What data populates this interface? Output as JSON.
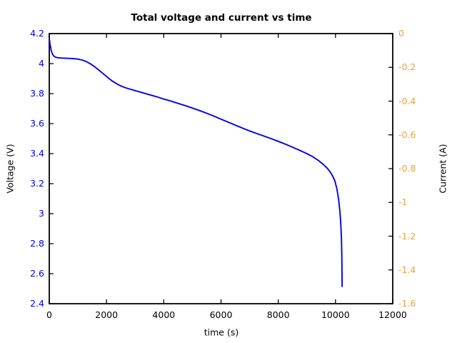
{
  "chart_data": {
    "type": "line",
    "title": "Total voltage and current vs time",
    "xlabel": "time (s)",
    "ylabel_left": "Voltage (V)",
    "ylabel_right": "Current (A)",
    "xlim": [
      0,
      12000
    ],
    "ylim_left": [
      2.4,
      4.2
    ],
    "ylim_right": [
      -1.6,
      0
    ],
    "grid": false,
    "legend": "none",
    "xticks": {
      "values": [
        0,
        2000,
        4000,
        6000,
        8000,
        10000,
        12000
      ],
      "labels": [
        "0",
        "2000",
        "4000",
        "6000",
        "8000",
        "10000",
        "12000"
      ]
    },
    "yticks_left": {
      "values": [
        4.2,
        4.0,
        3.8,
        3.6,
        3.4,
        3.2,
        3.0,
        2.8,
        2.6,
        2.4
      ],
      "labels": [
        "4.2",
        "4",
        "3.8",
        "3.6",
        "3.4",
        "3.2",
        "3",
        "2.8",
        "2.6",
        "2.4"
      ]
    },
    "yticks_right": {
      "values": [
        0,
        -0.2,
        -0.4,
        -0.6,
        -0.8,
        -1.0,
        -1.2,
        -1.4,
        -1.6
      ],
      "labels": [
        "0",
        "-0.2",
        "-0.4",
        "-0.6",
        "-0.8",
        "-1",
        "-1.2",
        "-1.4",
        "-1.6"
      ]
    },
    "colors": {
      "voltage": "#0000ee",
      "current_axis": "#e8a33c",
      "axis_frame": "#000000",
      "background": "#ffffff"
    },
    "series": [
      {
        "name": "Total voltage",
        "axis": "left",
        "color": "#0000ee",
        "x": [
          0,
          30,
          60,
          100,
          150,
          220,
          300,
          420,
          560,
          700,
          850,
          1000,
          1150,
          1300,
          1450,
          1600,
          1750,
          1900,
          2050,
          2200,
          2350,
          2500,
          2650,
          2800,
          3000,
          3200,
          3400,
          3600,
          3800,
          4000,
          4250,
          4500,
          4750,
          5000,
          5250,
          5500,
          5750,
          6000,
          6250,
          6500,
          6750,
          7000,
          7250,
          7500,
          7750,
          8000,
          8250,
          8500,
          8750,
          9000,
          9200,
          9400,
          9550,
          9700,
          9800,
          9900,
          9980,
          10050,
          10110,
          10155,
          10185,
          10205,
          10218,
          10226,
          10231
        ],
        "y": [
          4.17,
          4.125,
          4.095,
          4.068,
          4.052,
          4.043,
          4.039,
          4.037,
          4.036,
          4.035,
          4.033,
          4.03,
          4.024,
          4.013,
          3.997,
          3.977,
          3.954,
          3.93,
          3.906,
          3.884,
          3.866,
          3.851,
          3.84,
          3.831,
          3.82,
          3.809,
          3.798,
          3.787,
          3.776,
          3.764,
          3.75,
          3.735,
          3.72,
          3.704,
          3.687,
          3.669,
          3.65,
          3.63,
          3.61,
          3.59,
          3.57,
          3.551,
          3.534,
          3.517,
          3.5,
          3.482,
          3.463,
          3.443,
          3.422,
          3.4,
          3.38,
          3.355,
          3.332,
          3.305,
          3.282,
          3.252,
          3.218,
          3.165,
          3.095,
          3.015,
          2.935,
          2.845,
          2.745,
          2.635,
          2.515
        ]
      }
    ]
  }
}
